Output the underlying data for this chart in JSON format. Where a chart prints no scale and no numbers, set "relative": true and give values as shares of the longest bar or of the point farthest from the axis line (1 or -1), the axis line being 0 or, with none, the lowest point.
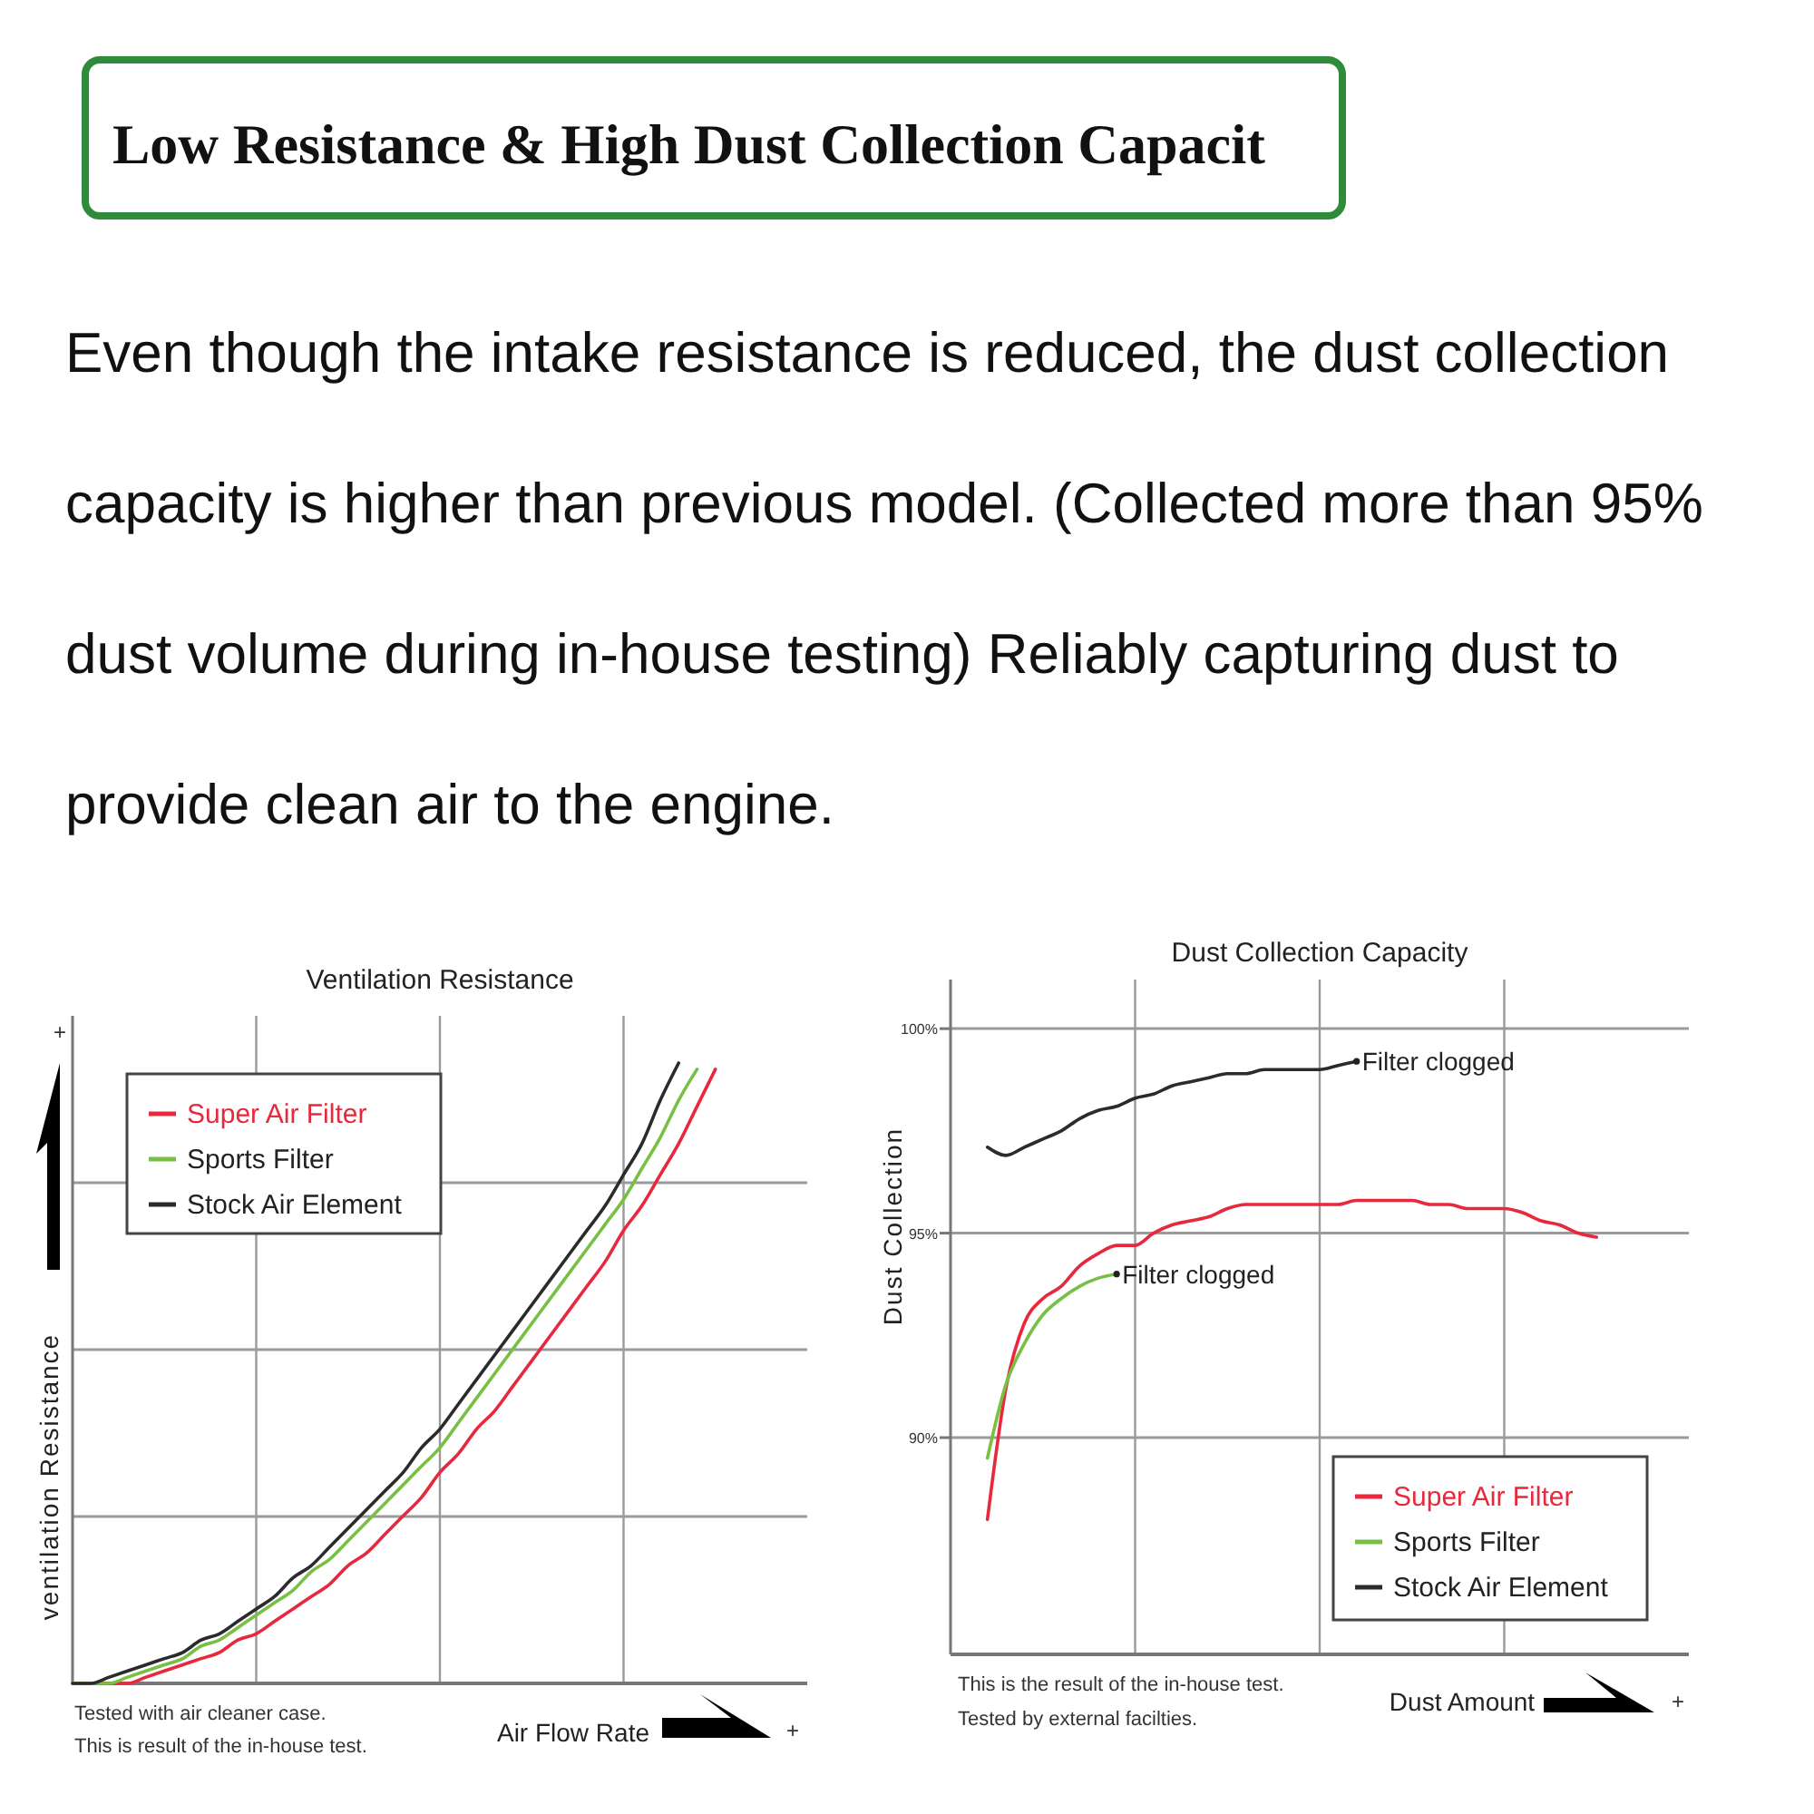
{
  "chart_data": [
    {
      "type": "other",
      "title": "Low Resistance & High Dust Collection Capacit",
      "subtitle": " Even though the intake resistance is reduced, the dust collection capacity is higher than previous model. (Collected more than 95% dust volume during in-house testing) Reliably capturing dust to provide clean air to the engine."
    },
    {
      "type": "line",
      "title": "Ventilation Resistance",
      "xlabel": "Air Flow Rate",
      "ylabel": "ventilation Resistance",
      "relative": true,
      "grid": true,
      "legend": "top left",
      "categories": [
        null,
        null,
        null,
        null,
        null,
        null,
        null,
        null,
        null,
        null,
        null,
        null,
        null,
        null,
        null,
        null,
        null,
        null,
        null,
        null,
        null,
        null,
        null,
        null,
        null,
        null,
        null,
        null,
        null,
        null,
        null,
        null,
        null,
        null,
        null,
        null,
        null,
        null,
        null,
        null,
        null
      ],
      "series": [
        {
          "name": "Super Air Filter",
          "color": "#e8283c",
          "values": [
            0,
            0,
            0,
            0,
            0.01,
            0.02,
            0.03,
            0.04,
            0.05,
            0.07,
            0.08,
            0.1,
            0.12,
            0.14,
            0.16,
            0.19,
            0.21,
            0.24,
            0.27,
            0.3,
            0.34,
            0.37,
            0.41,
            0.44,
            0.48,
            0.52,
            0.56,
            0.6,
            0.64,
            0.68,
            0.73,
            0.77,
            0.82,
            0.87,
            0.93,
            0.99,
            null,
            null,
            null,
            null,
            null
          ]
        },
        {
          "name": "Sports Filter",
          "color": "#78c043",
          "values": [
            0,
            0,
            0,
            0.01,
            0.02,
            0.03,
            0.04,
            0.06,
            0.07,
            0.09,
            0.11,
            0.13,
            0.15,
            0.18,
            0.2,
            0.23,
            0.26,
            0.29,
            0.32,
            0.35,
            0.38,
            0.42,
            0.46,
            0.5,
            0.54,
            0.58,
            0.62,
            0.66,
            0.7,
            0.74,
            0.78,
            0.83,
            0.88,
            0.94,
            0.99,
            null,
            null,
            null,
            null,
            null,
            null
          ]
        },
        {
          "name": "Stock Air Element",
          "color": "#2b2b2b",
          "values": [
            0,
            0,
            0.01,
            0.02,
            0.03,
            0.04,
            0.05,
            0.07,
            0.08,
            0.1,
            0.12,
            0.14,
            0.17,
            0.19,
            0.22,
            0.25,
            0.28,
            0.31,
            0.34,
            0.38,
            0.41,
            0.45,
            0.49,
            0.53,
            0.57,
            0.61,
            0.65,
            0.69,
            0.73,
            0.77,
            0.82,
            0.87,
            0.94,
            1.0,
            null,
            null,
            null,
            null,
            null,
            null,
            null
          ]
        }
      ],
      "annotations": [
        "+",
        "+",
        "Tested with air cleaner case.",
        "This is result of the in-house test."
      ]
    },
    {
      "type": "line",
      "title": "Dust Collection Capacity",
      "xlabel": "Dust Amount",
      "ylabel": "Dust Collection",
      "grid": true,
      "legend": "bottom right",
      "ylim": [
        84.7,
        101.2
      ],
      "yticks": [
        {
          "value": 90,
          "label": "90%"
        },
        {
          "value": 95,
          "label": "95%"
        },
        {
          "value": 100,
          "label": "100%"
        }
      ],
      "categories": [
        null,
        null,
        null,
        null,
        null,
        null,
        null,
        null,
        null,
        null,
        null,
        null,
        null,
        null,
        null,
        null,
        null,
        null,
        null,
        null,
        null,
        null,
        null,
        null,
        null,
        null,
        null,
        null,
        null,
        null,
        null,
        null,
        null,
        null,
        null,
        null,
        null,
        null,
        null,
        null,
        null
      ],
      "series": [
        {
          "name": "Super Air Filter",
          "color": "#e8283c",
          "values": [
            null,
            null,
            88.0,
            91.2,
            92.8,
            93.4,
            93.7,
            94.2,
            94.5,
            94.7,
            94.7,
            95.0,
            95.2,
            95.3,
            95.4,
            95.6,
            95.7,
            95.7,
            95.7,
            95.7,
            95.7,
            95.7,
            95.8,
            95.8,
            95.8,
            95.8,
            95.7,
            95.7,
            95.6,
            95.6,
            95.6,
            95.5,
            95.3,
            95.2,
            95.0,
            94.9,
            null,
            null,
            null,
            null,
            null
          ]
        },
        {
          "name": "Sports Filter",
          "color": "#78c043",
          "values": [
            null,
            null,
            89.5,
            91.3,
            92.3,
            93.0,
            93.4,
            93.7,
            93.9,
            94.0,
            null,
            null,
            null,
            null,
            null,
            null,
            null,
            null,
            null,
            null,
            null,
            null,
            null,
            null,
            null,
            null,
            null,
            null,
            null,
            null,
            null,
            null,
            null,
            null,
            null,
            null,
            null,
            null,
            null,
            null,
            null
          ]
        },
        {
          "name": "Stock Air Element",
          "color": "#2b2b2b",
          "values": [
            null,
            null,
            97.1,
            96.9,
            97.1,
            97.3,
            97.5,
            97.8,
            98.0,
            98.1,
            98.3,
            98.4,
            98.6,
            98.7,
            98.8,
            98.9,
            98.9,
            99.0,
            99.0,
            99.0,
            99.0,
            99.1,
            99.2,
            null,
            null,
            null,
            null,
            null,
            null,
            null,
            null,
            null,
            null,
            null,
            null,
            null,
            null,
            null,
            null,
            null,
            null
          ]
        }
      ],
      "annotations": [
        "Filter clogged",
        "Filter clogged",
        "This is the result of the in-house test.",
        "Tested by external facilties.",
        "+"
      ]
    }
  ]
}
